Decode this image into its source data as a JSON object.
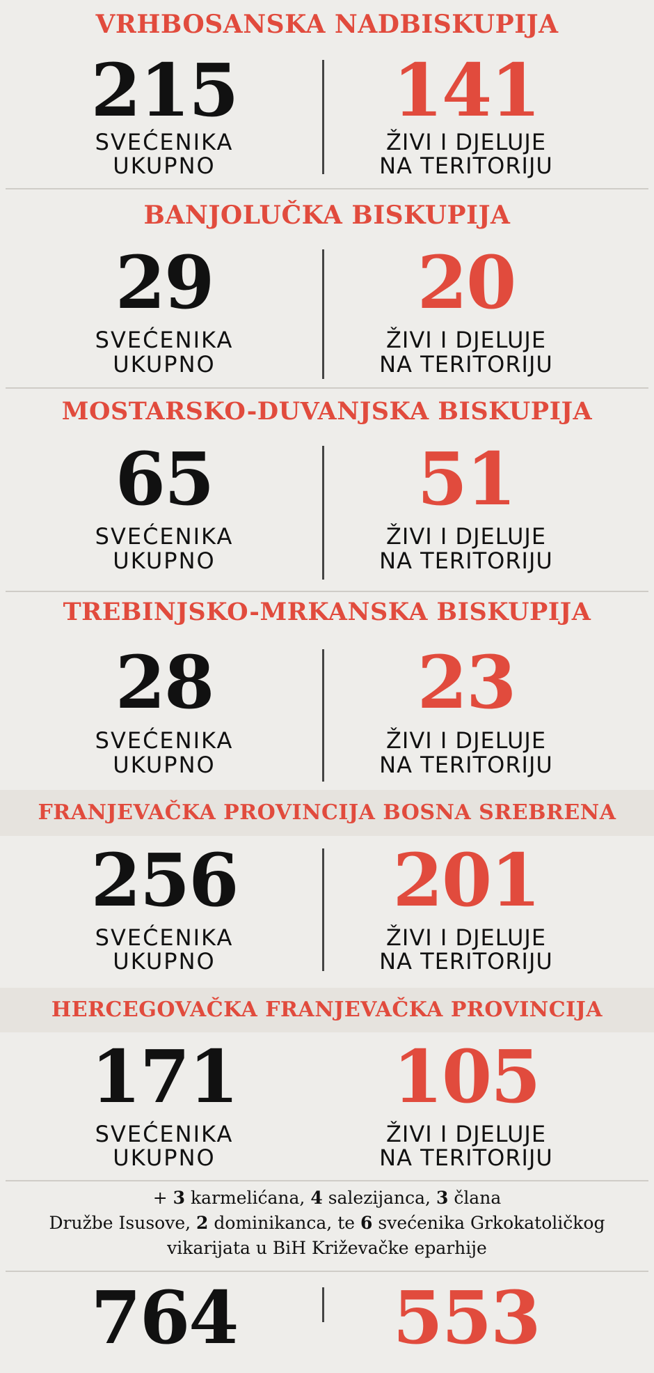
{
  "sections": [
    {
      "title": "VRHBOSANSKA NADBISKUPIJA",
      "total": "215",
      "total_label_1": "SVEĆENIKA",
      "total_label_2": "UKUPNO",
      "active": "141",
      "active_label_1": "ŽIVI I DJELUJE",
      "active_label_2": "NA TERITORIJU"
    },
    {
      "title": "BANJOLUČKA BISKUPIJA",
      "total": "29",
      "total_label_1": "SVEĆENIKA",
      "total_label_2": "UKUPNO",
      "active": "20",
      "active_label_1": "ŽIVI I DJELUJE",
      "active_label_2": "NA TERITORIJU"
    },
    {
      "title": "MOSTARSKO-DUVANJSKA BISKUPIJA",
      "total": "65",
      "total_label_1": "SVEĆENIKA",
      "total_label_2": "UKUPNO",
      "active": "51",
      "active_label_1": "ŽIVI I DJELUJE",
      "active_label_2": "NA TERITORIJU"
    },
    {
      "title": "TREBINJSKO-MRKANSKA BISKUPIJA",
      "total": "28",
      "total_label_1": "SVEĆENIKA",
      "total_label_2": "UKUPNO",
      "active": "23",
      "active_label_1": "ŽIVI I DJELUJE",
      "active_label_2": "NA TERITORIJU"
    },
    {
      "title": "FRANJEVAČKA PROVINCIJA BOSNA SREBRENA",
      "total": "256",
      "total_label_1": "SVEĆENIKA",
      "total_label_2": "UKUPNO",
      "active": "201",
      "active_label_1": "ŽIVI I DJELUJE",
      "active_label_2": "NA TERITORIJU"
    },
    {
      "title": "HERCEGOVAČKA FRANJEVAČKA PROVINCIJA",
      "total": "171",
      "total_label_1": "SVEĆENIKA",
      "total_label_2": "UKUPNO",
      "active": "105",
      "active_label_1": "ŽIVI I DJELUJE",
      "active_label_2": "NA TERITORIJU"
    }
  ],
  "note": {
    "plus": "+",
    "n1": "3",
    "t1": "karmelićana,",
    "n2": "4",
    "t2": "salezijanca,",
    "n3": "3",
    "t3": "člana",
    "t4": "Družbe Isusove,",
    "n4": "2",
    "t5": "dominikanca, te",
    "n5": "6",
    "t6": "svećenika Grkokatoličkog",
    "t7": "vikarijata u BiH Križevačke eparhije"
  },
  "totals": {
    "total": "764",
    "active": "553"
  },
  "colors": {
    "accent": "#e14b3d",
    "text": "#111111",
    "background": "#eeedea",
    "band": "#e6e3de"
  }
}
